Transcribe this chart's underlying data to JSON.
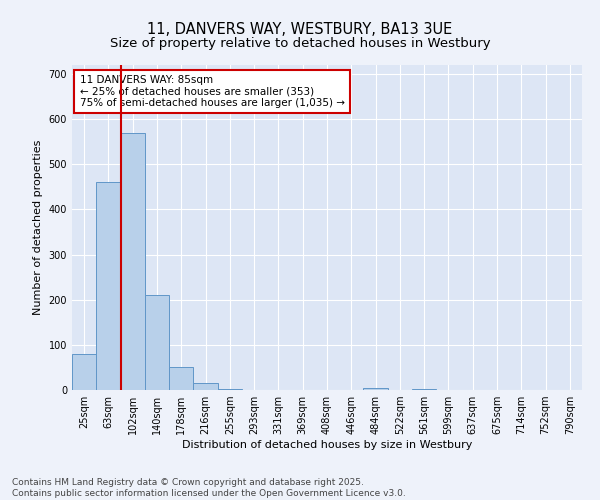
{
  "title_line1": "11, DANVERS WAY, WESTBURY, BA13 3UE",
  "title_line2": "Size of property relative to detached houses in Westbury",
  "xlabel": "Distribution of detached houses by size in Westbury",
  "ylabel": "Number of detached properties",
  "categories": [
    "25sqm",
    "63sqm",
    "102sqm",
    "140sqm",
    "178sqm",
    "216sqm",
    "255sqm",
    "293sqm",
    "331sqm",
    "369sqm",
    "408sqm",
    "446sqm",
    "484sqm",
    "522sqm",
    "561sqm",
    "599sqm",
    "637sqm",
    "675sqm",
    "714sqm",
    "752sqm",
    "790sqm"
  ],
  "values": [
    80,
    460,
    570,
    210,
    50,
    15,
    3,
    0,
    0,
    0,
    0,
    0,
    5,
    0,
    3,
    0,
    0,
    0,
    0,
    0,
    0
  ],
  "bar_color": "#b8d0ea",
  "bar_edge_color": "#6096c8",
  "vline_color": "#cc0000",
  "vline_x_index": 1.5,
  "ylim": [
    0,
    720
  ],
  "yticks": [
    0,
    100,
    200,
    300,
    400,
    500,
    600,
    700
  ],
  "annotation_text": "11 DANVERS WAY: 85sqm\n← 25% of detached houses are smaller (353)\n75% of semi-detached houses are larger (1,035) →",
  "footnote": "Contains HM Land Registry data © Crown copyright and database right 2025.\nContains public sector information licensed under the Open Government Licence v3.0.",
  "background_color": "#eef2fa",
  "plot_bg_color": "#dde6f5",
  "grid_color": "#ffffff",
  "title_fontsize": 10.5,
  "subtitle_fontsize": 9.5,
  "axis_label_fontsize": 8,
  "tick_fontsize": 7,
  "annotation_fontsize": 7.5,
  "footnote_fontsize": 6.5
}
